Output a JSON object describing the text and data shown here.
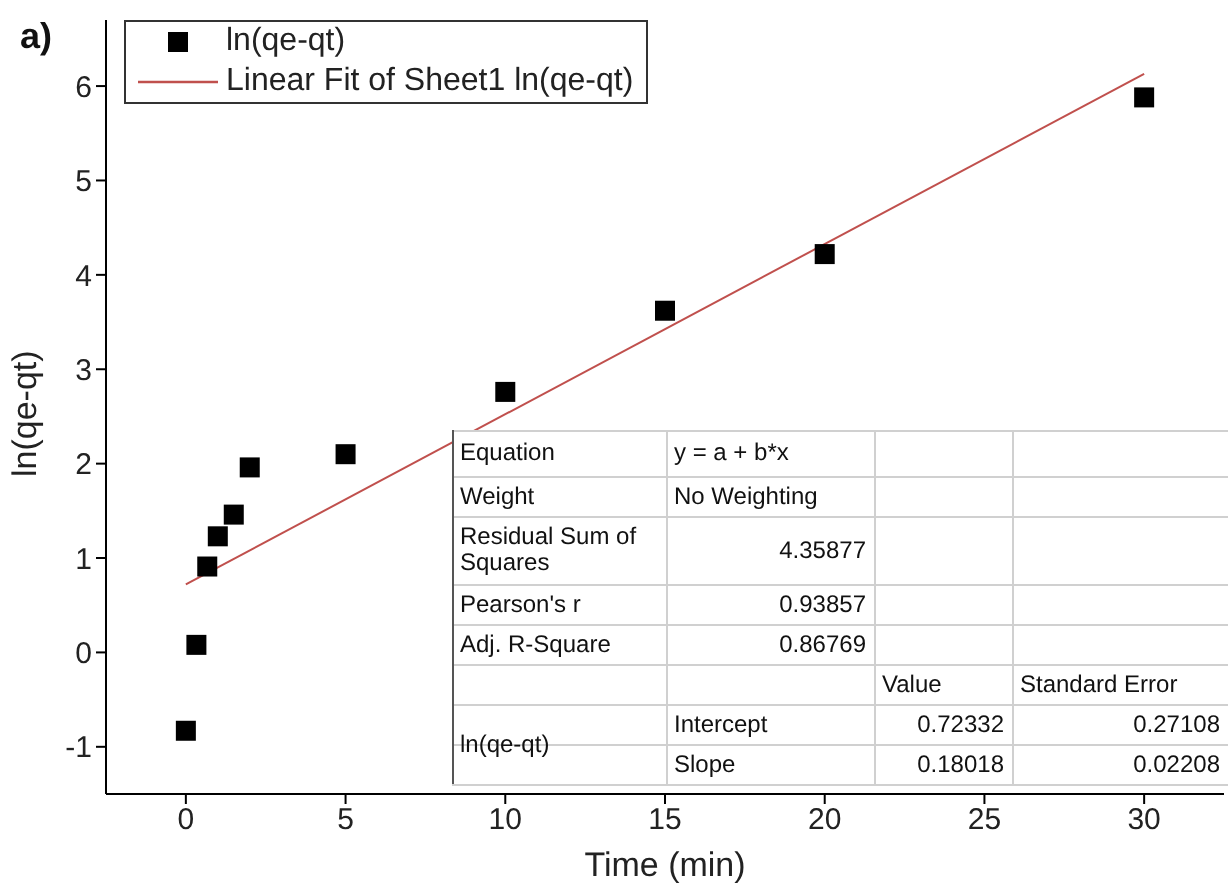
{
  "chart_data": {
    "type": "scatter",
    "title": "a)",
    "xlabel": "Time (min)",
    "ylabel": "ln(qe-qt)",
    "xlim": [
      -2.5,
      32.5
    ],
    "ylim": [
      -1.5,
      6.7
    ],
    "xticks": [
      0,
      5,
      10,
      15,
      20,
      25,
      30
    ],
    "yticks": [
      -1,
      0,
      1,
      2,
      3,
      4,
      5,
      6
    ],
    "grid": false,
    "legend": "top left",
    "series": [
      {
        "name": "ln(qe-qt)",
        "marker": "square",
        "color": "#000000",
        "x": [
          0,
          0.33,
          0.67,
          1,
          1.5,
          2,
          5,
          10,
          15,
          20,
          30
        ],
        "values": [
          -0.83,
          0.08,
          0.91,
          1.23,
          1.46,
          1.96,
          2.1,
          2.76,
          3.62,
          4.22,
          5.88
        ]
      },
      {
        "name": "Linear Fit of Sheet1 ln(qe-qt)",
        "type": "line",
        "marker": "none",
        "color": "#c0504d",
        "x": [
          0,
          30
        ],
        "values": [
          0.72,
          6.13
        ]
      }
    ],
    "annotations": [
      "Equation",
      "y = a + b*x",
      "Weight",
      "No Weighting",
      "Residual Sum of Squares",
      "4.35877",
      "Pearson's r",
      "0.93857",
      "Adj. R-Square",
      "0.86769",
      "Value",
      "Standard Error",
      "ln(qe-qt)",
      "Intercept",
      "0.72332",
      "0.27108",
      "Slope",
      "0.18018",
      "0.02208"
    ]
  }
}
